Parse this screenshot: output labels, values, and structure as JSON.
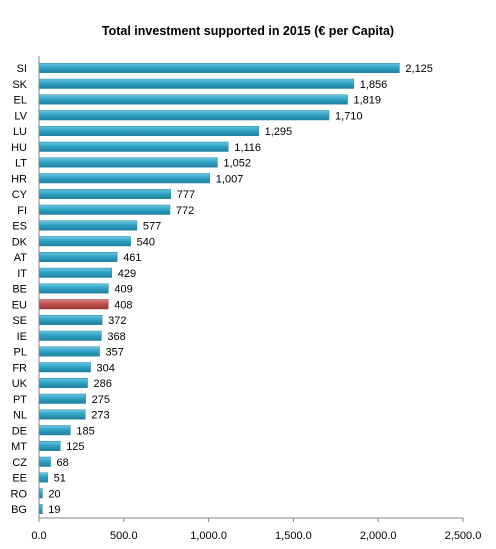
{
  "chart_data": {
    "type": "bar",
    "orientation": "horizontal",
    "title": "Total investment supported in 2015  (€ per Capita)",
    "categories": [
      "SI",
      "SK",
      "EL",
      "LV",
      "LU",
      "HU",
      "LT",
      "HR",
      "CY",
      "FI",
      "ES",
      "DK",
      "AT",
      "IT",
      "BE",
      "EU",
      "SE",
      "IE",
      "PL",
      "FR",
      "UK",
      "PT",
      "NL",
      "DE",
      "MT",
      "CZ",
      "EE",
      "RO",
      "BG"
    ],
    "values": [
      2125,
      1856,
      1819,
      1710,
      1295,
      1116,
      1052,
      1007,
      777,
      772,
      577,
      540,
      461,
      429,
      409,
      408,
      372,
      368,
      357,
      304,
      286,
      275,
      273,
      185,
      125,
      68,
      51,
      20,
      19
    ],
    "value_labels": [
      "2,125",
      "1,856",
      "1,819",
      "1,710",
      "1,295",
      "1,116",
      "1,052",
      "1,007",
      "777",
      "772",
      "577",
      "540",
      "461",
      "429",
      "409",
      "408",
      "372",
      "368",
      "357",
      "304",
      "286",
      "275",
      "273",
      "185",
      "125",
      "68",
      "51",
      "20",
      "19"
    ],
    "xlim": [
      0,
      2500
    ],
    "xticks": [
      0,
      500,
      1000,
      1500,
      2000,
      2500
    ],
    "xtick_labels": [
      "0.0",
      "500.0",
      "1,000.0",
      "1,500.0",
      "2,000.0",
      "2,500.0"
    ],
    "highlight_category": "EU",
    "colors": {
      "bar": "#31a3c6",
      "highlight": "#c0504d"
    },
    "grid": false,
    "legend": "none"
  }
}
